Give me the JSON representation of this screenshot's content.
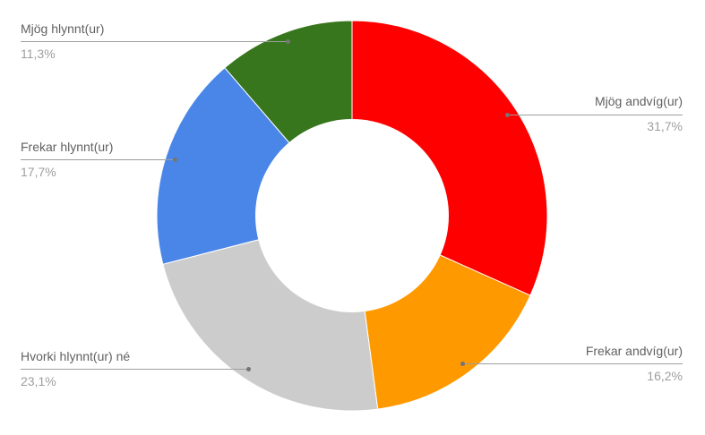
{
  "chart_data": {
    "type": "pie",
    "subtype": "donut",
    "title": "",
    "legend": "none",
    "label_style": "outside-callouts",
    "direction": "clockwise",
    "start_angle_deg": 0,
    "hole_ratio": 0.5,
    "background_color": "#ffffff",
    "label_color": "#616161",
    "percent_color": "#9e9e9e",
    "line_color": "#9e9e9e",
    "dot_color": "#757575",
    "slice_border_color": "#ffffff",
    "slices": [
      {
        "label": "Mjög andvíg(ur)",
        "value": 31.7,
        "percent_label": "31,7%",
        "color": "#ff0000",
        "side": "right"
      },
      {
        "label": "Frekar andvíg(ur)",
        "value": 16.2,
        "percent_label": "16,2%",
        "color": "#ff9900",
        "side": "right"
      },
      {
        "label": "Hvorki hlynnt(ur) né",
        "value": 23.1,
        "percent_label": "23,1%",
        "color": "#cccccc",
        "side": "left"
      },
      {
        "label": "Frekar hlynnt(ur)",
        "value": 17.7,
        "percent_label": "17,7%",
        "color": "#4a86e8",
        "side": "left"
      },
      {
        "label": "Mjög hlynnt(ur)",
        "value": 11.3,
        "percent_label": "11,3%",
        "color": "#38761d",
        "side": "left"
      }
    ]
  }
}
